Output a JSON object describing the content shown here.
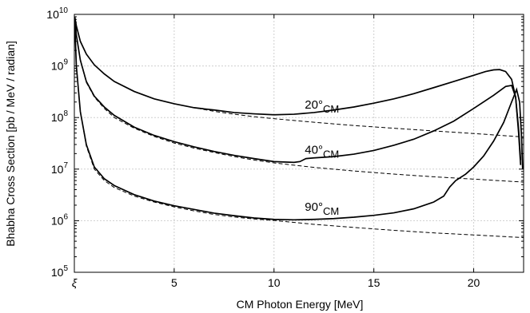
{
  "chart_data": {
    "type": "line",
    "title": "",
    "xlabel": "CM Photon Energy [MeV]",
    "ylabel": "Bhabha Cross Section [pb / MeV / radian]",
    "xlim": [
      0,
      22.5
    ],
    "ylim": [
      100000,
      10000000000
    ],
    "yscale": "log",
    "grid": true,
    "legend": "none",
    "x_ticks": [
      {
        "value": 0,
        "label": "ξ"
      },
      {
        "value": 5,
        "label": "5"
      },
      {
        "value": 10,
        "label": "10"
      },
      {
        "value": 15,
        "label": "15"
      },
      {
        "value": 20,
        "label": "20"
      }
    ],
    "y_ticks": [
      {
        "value": 100000,
        "base": "10",
        "exp": "5"
      },
      {
        "value": 1000000,
        "base": "10",
        "exp": "6"
      },
      {
        "value": 10000000,
        "base": "10",
        "exp": "7"
      },
      {
        "value": 100000000,
        "base": "10",
        "exp": "8"
      },
      {
        "value": 1000000000,
        "base": "10",
        "exp": "9"
      },
      {
        "value": 10000000000,
        "base": "10",
        "exp": "10"
      }
    ],
    "series": [
      {
        "style": "solid",
        "label_main": "20°",
        "label_sub": "CM",
        "label_at": [
          12.4,
          150000000
        ],
        "points": [
          [
            0.02,
            9000000000
          ],
          [
            0.1,
            6000000000
          ],
          [
            0.3,
            3000000000
          ],
          [
            0.6,
            1700000000
          ],
          [
            1.0,
            1050000000
          ],
          [
            1.5,
            700000000
          ],
          [
            2.0,
            500000000
          ],
          [
            3.0,
            320000000
          ],
          [
            4.0,
            230000000
          ],
          [
            5.0,
            185000000
          ],
          [
            6.0,
            155000000
          ],
          [
            7.0,
            140000000
          ],
          [
            8.0,
            125000000
          ],
          [
            9.0,
            118000000
          ],
          [
            10.0,
            113000000
          ],
          [
            11.0,
            116000000
          ],
          [
            12.0,
            125000000
          ],
          [
            13.0,
            140000000
          ],
          [
            14.0,
            160000000
          ],
          [
            15.0,
            190000000
          ],
          [
            16.0,
            230000000
          ],
          [
            17.0,
            290000000
          ],
          [
            18.0,
            380000000
          ],
          [
            19.0,
            500000000
          ],
          [
            20.0,
            660000000
          ],
          [
            20.6,
            780000000
          ],
          [
            21.0,
            840000000
          ],
          [
            21.3,
            850000000
          ],
          [
            21.6,
            780000000
          ],
          [
            21.9,
            550000000
          ],
          [
            22.1,
            250000000
          ],
          [
            22.25,
            50000000
          ],
          [
            22.35,
            12000000
          ]
        ]
      },
      {
        "style": "solid",
        "label_main": "40°",
        "label_sub": "CM",
        "label_at": [
          12.4,
          20000000
        ],
        "points": [
          [
            0.02,
            8000000000
          ],
          [
            0.1,
            4000000000
          ],
          [
            0.3,
            1300000000
          ],
          [
            0.6,
            500000000
          ],
          [
            1.0,
            260000000
          ],
          [
            1.5,
            160000000
          ],
          [
            2.0,
            110000000
          ],
          [
            3.0,
            65000000
          ],
          [
            4.0,
            45000000
          ],
          [
            5.0,
            34000000
          ],
          [
            6.0,
            27000000
          ],
          [
            7.0,
            22000000
          ],
          [
            8.0,
            18500000
          ],
          [
            9.0,
            16000000
          ],
          [
            10.0,
            14000000
          ],
          [
            11.0,
            13500000
          ],
          [
            11.3,
            14000000
          ],
          [
            11.6,
            16000000
          ],
          [
            12.0,
            16500000
          ],
          [
            13.0,
            17500000
          ],
          [
            14.0,
            19500000
          ],
          [
            15.0,
            23000000
          ],
          [
            16.0,
            29000000
          ],
          [
            17.0,
            38000000
          ],
          [
            18.0,
            55000000
          ],
          [
            19.0,
            85000000
          ],
          [
            20.0,
            150000000
          ],
          [
            21.0,
            270000000
          ],
          [
            21.6,
            400000000
          ],
          [
            21.9,
            420000000
          ],
          [
            22.1,
            250000000
          ],
          [
            22.25,
            60000000
          ],
          [
            22.35,
            15000000
          ]
        ]
      },
      {
        "style": "solid",
        "label_main": "90°",
        "label_sub": "CM",
        "label_at": [
          12.4,
          1550000
        ],
        "points": [
          [
            0.02,
            7000000000
          ],
          [
            0.1,
            1000000000
          ],
          [
            0.3,
            130000000
          ],
          [
            0.6,
            30000000
          ],
          [
            1.0,
            11000000
          ],
          [
            1.5,
            6500000
          ],
          [
            2.0,
            4800000
          ],
          [
            3.0,
            3200000
          ],
          [
            4.0,
            2400000
          ],
          [
            5.0,
            1950000
          ],
          [
            6.0,
            1650000
          ],
          [
            7.0,
            1400000
          ],
          [
            8.0,
            1250000
          ],
          [
            9.0,
            1130000
          ],
          [
            10.0,
            1060000
          ],
          [
            11.0,
            1040000
          ],
          [
            12.0,
            1060000
          ],
          [
            13.0,
            1100000
          ],
          [
            14.0,
            1170000
          ],
          [
            15.0,
            1270000
          ],
          [
            16.0,
            1420000
          ],
          [
            17.0,
            1700000
          ],
          [
            18.0,
            2300000
          ],
          [
            18.5,
            3000000
          ],
          [
            18.8,
            4500000
          ],
          [
            19.1,
            6000000
          ],
          [
            19.6,
            8000000
          ],
          [
            20.0,
            11000000
          ],
          [
            20.5,
            18000000
          ],
          [
            21.0,
            35000000
          ],
          [
            21.5,
            80000000
          ],
          [
            21.9,
            200000000
          ],
          [
            22.15,
            350000000
          ],
          [
            22.3,
            200000000
          ],
          [
            22.4,
            40000000
          ],
          [
            22.45,
            10000000
          ]
        ]
      },
      {
        "style": "dashed",
        "points": [
          [
            0.02,
            9000000000
          ],
          [
            0.1,
            6000000000
          ],
          [
            0.3,
            3000000000
          ],
          [
            0.6,
            1700000000
          ],
          [
            1.0,
            1050000000
          ],
          [
            1.5,
            700000000
          ],
          [
            2.0,
            500000000
          ],
          [
            3.0,
            320000000
          ],
          [
            4.0,
            230000000
          ],
          [
            5.0,
            185000000
          ],
          [
            6.0,
            155000000
          ],
          [
            7.0,
            132000000
          ],
          [
            8.0,
            116000000
          ],
          [
            9.0,
            104000000
          ],
          [
            10.0,
            95000000
          ],
          [
            12.0,
            81000000
          ],
          [
            14.0,
            70000000
          ],
          [
            16.0,
            62000000
          ],
          [
            18.0,
            55000000
          ],
          [
            20.0,
            49000000
          ],
          [
            22.5,
            42000000
          ]
        ]
      },
      {
        "style": "dashed",
        "points": [
          [
            0.02,
            8000000000
          ],
          [
            0.1,
            4000000000
          ],
          [
            0.3,
            1300000000
          ],
          [
            0.6,
            480000000
          ],
          [
            1.0,
            250000000
          ],
          [
            1.5,
            150000000
          ],
          [
            2.0,
            100000000
          ],
          [
            3.0,
            62000000
          ],
          [
            4.0,
            43000000
          ],
          [
            5.0,
            32000000
          ],
          [
            6.0,
            25500000
          ],
          [
            7.0,
            21000000
          ],
          [
            8.0,
            17500000
          ],
          [
            9.0,
            15000000
          ],
          [
            10.0,
            13200000
          ],
          [
            12.0,
            10800000
          ],
          [
            14.0,
            9200000
          ],
          [
            16.0,
            8000000
          ],
          [
            18.0,
            7100000
          ],
          [
            20.0,
            6400000
          ],
          [
            22.5,
            5600000
          ]
        ]
      },
      {
        "style": "dashed",
        "points": [
          [
            0.02,
            7000000000
          ],
          [
            0.1,
            1000000000
          ],
          [
            0.3,
            130000000
          ],
          [
            0.6,
            28000000
          ],
          [
            1.0,
            10000000
          ],
          [
            1.5,
            6000000
          ],
          [
            2.0,
            4400000
          ],
          [
            3.0,
            3000000
          ],
          [
            4.0,
            2300000
          ],
          [
            5.0,
            1850000
          ],
          [
            6.0,
            1550000
          ],
          [
            7.0,
            1320000
          ],
          [
            8.0,
            1180000
          ],
          [
            9.0,
            1080000
          ],
          [
            10.0,
            1010000
          ],
          [
            12.0,
            850000
          ],
          [
            14.0,
            740000
          ],
          [
            16.0,
            650000
          ],
          [
            18.0,
            580000
          ],
          [
            20.0,
            530000
          ],
          [
            22.5,
            470000
          ]
        ]
      }
    ]
  }
}
